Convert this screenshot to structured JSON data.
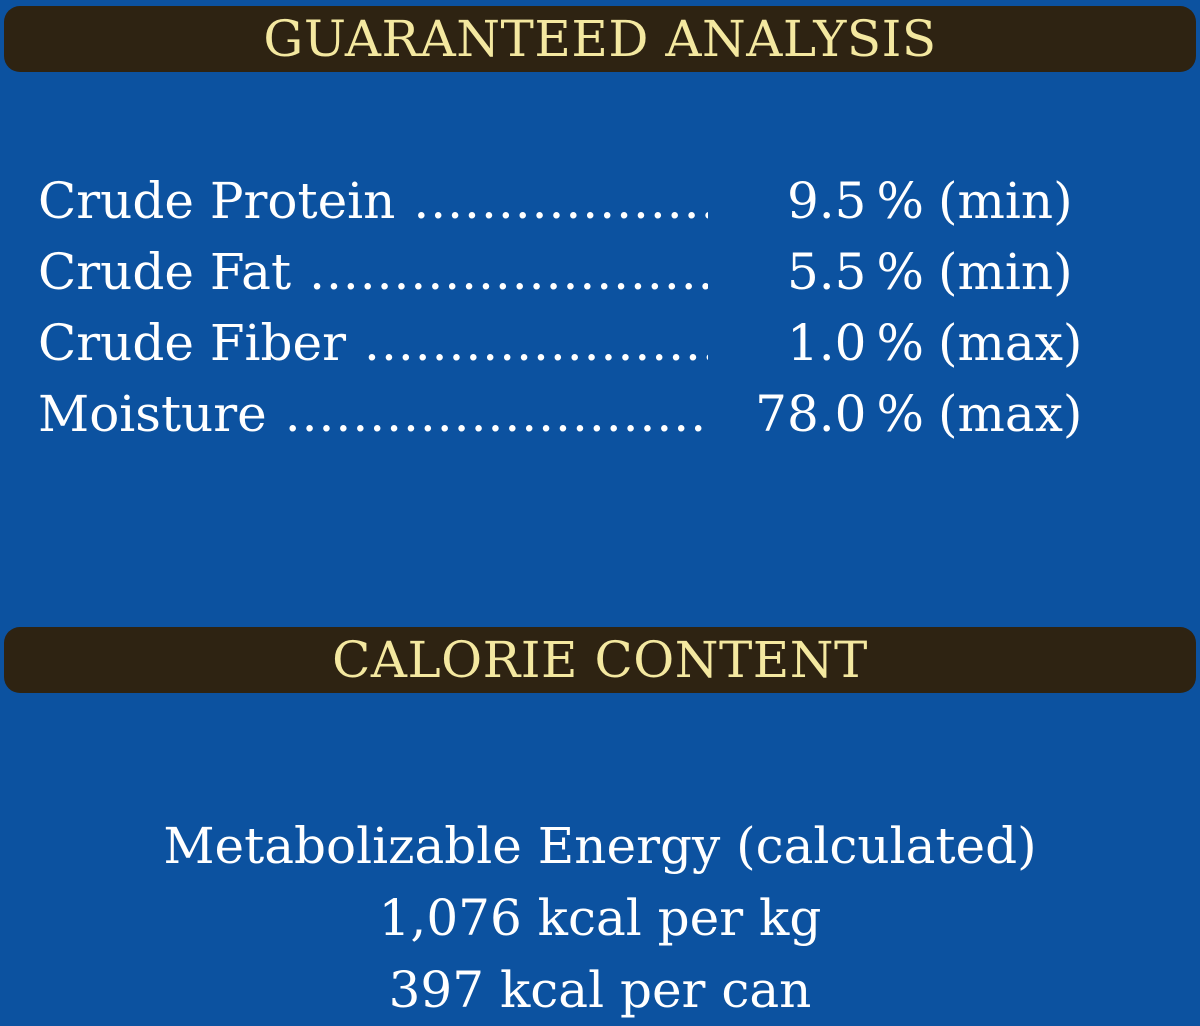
{
  "sections": {
    "guaranteed_analysis": {
      "title": "GUARANTEED ANALYSIS",
      "rows": [
        {
          "name": "Crude Protein",
          "value": "9.5",
          "unit": "%",
          "qualifier": "(min)"
        },
        {
          "name": "Crude Fat",
          "value": "5.5",
          "unit": "%",
          "qualifier": "(min)"
        },
        {
          "name": "Crude Fiber",
          "value": "1.0",
          "unit": "%",
          "qualifier": "(max)"
        },
        {
          "name": "Moisture",
          "value": "78.0",
          "unit": "%",
          "qualifier": "(max)"
        }
      ]
    },
    "calorie_content": {
      "title": "CALORIE CONTENT",
      "lines": [
        "Metabolizable Energy (calculated)",
        "1,076 kcal per kg",
        "397 kcal per can"
      ]
    }
  },
  "colors": {
    "background": "#0c52a0",
    "banner": "#2e2312",
    "banner_text": "#f4e8a0",
    "body_text": "#ffffff"
  }
}
